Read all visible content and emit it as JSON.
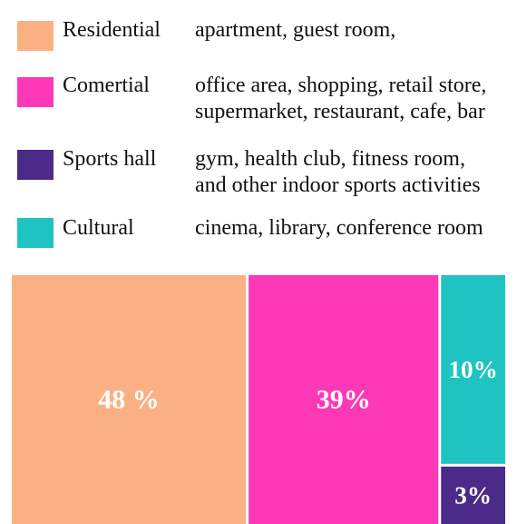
{
  "legend": [
    {
      "name": "Residential",
      "lines": [
        "apartment, guest room,"
      ],
      "color": "#fbb084"
    },
    {
      "name": "Comertial",
      "lines": [
        "office area, shopping, retail store,",
        "supermarket, restaurant, cafe, bar"
      ],
      "color": "#fd39b8"
    },
    {
      "name": "Sports hall",
      "lines": [
        "gym, health club, fitness room,",
        "and other indoor sports activities"
      ],
      "color": "#4b2a8a"
    },
    {
      "name": "Cultural",
      "lines": [
        "cinema, library, conference room"
      ],
      "color": "#1fc4c2"
    }
  ],
  "chart_data": {
    "type": "treemap",
    "title": "",
    "items": [
      {
        "name": "Residential",
        "value": 48,
        "label": "48 %",
        "color": "#fbb084"
      },
      {
        "name": "Comertial",
        "value": 39,
        "label": "39%",
        "color": "#fd39b8"
      },
      {
        "name": "Cultural",
        "value": 10,
        "label": "10%",
        "color": "#1fc4c2"
      },
      {
        "name": "Sports hall",
        "value": 3,
        "label": "3%",
        "color": "#4b2a8a"
      }
    ]
  }
}
